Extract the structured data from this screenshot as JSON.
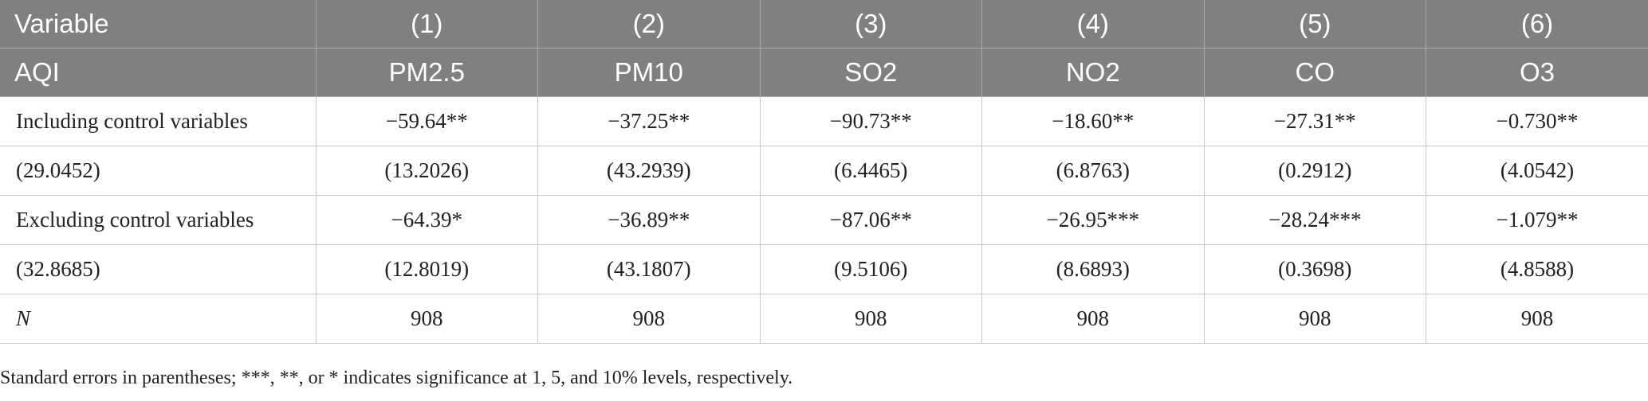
{
  "table": {
    "header_rows": [
      [
        "Variable",
        "(1)",
        "(2)",
        "(3)",
        "(4)",
        "(5)",
        "(6)"
      ],
      [
        "AQI",
        "PM2.5",
        "PM10",
        "SO2",
        "NO2",
        "CO",
        "O3"
      ]
    ],
    "body_rows": [
      [
        "Including control variables",
        "−59.64**",
        "−37.25**",
        "−90.73**",
        "−18.60**",
        "−27.31**",
        "−0.730**"
      ],
      [
        "(29.0452)",
        "(13.2026)",
        "(43.2939)",
        "(6.4465)",
        "(6.8763)",
        "(0.2912)",
        "(4.0542)"
      ],
      [
        "Excluding control variables",
        "−64.39*",
        "−36.89**",
        "−87.06**",
        "−26.95***",
        "−28.24***",
        "−1.079**"
      ],
      [
        "(32.8685)",
        "(12.8019)",
        "(43.1807)",
        "(9.5106)",
        "(8.6893)",
        "(0.3698)",
        "(4.8588)"
      ],
      [
        "N",
        "908",
        "908",
        "908",
        "908",
        "908",
        "908"
      ]
    ]
  },
  "note": "Standard errors in parentheses; ***, **, or * indicates significance at 1, 5, and 10% levels, respectively."
}
